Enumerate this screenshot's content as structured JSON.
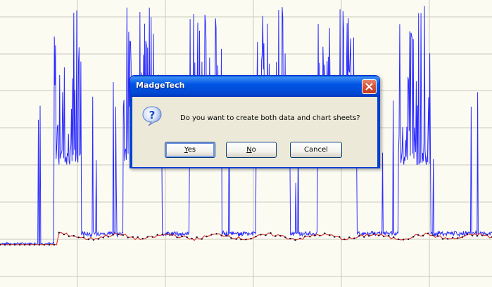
{
  "dialog": {
    "title": "MadgeTech",
    "message": "Do you want to create both data and chart sheets?",
    "buttons": {
      "yes_mnemonic": "Y",
      "yes_rest": "es",
      "no_mnemonic": "N",
      "no_rest": "o",
      "cancel": "Cancel"
    },
    "icons": {
      "message_icon": "question-icon",
      "close": "close-icon"
    }
  },
  "chart_data": {
    "type": "line",
    "grid": true,
    "x_range": [
      0,
      100
    ],
    "y_range": [
      0,
      100
    ],
    "series": [
      {
        "color": "#2b2bff",
        "spike_segments": [
          [
            11,
            16.5
          ],
          [
            25,
            33
          ],
          [
            38.5,
            45
          ],
          [
            52,
            59
          ],
          [
            64.5,
            72.5
          ],
          [
            81,
            87.5
          ]
        ],
        "spike_peak_range": [
          66,
          98
        ],
        "spike_floor_range": [
          38,
          44
        ],
        "resting_level": 8
      },
      {
        "color": "#e83a2a",
        "baseline_start": 8,
        "baseline_after_rise": 11
      }
    ]
  }
}
